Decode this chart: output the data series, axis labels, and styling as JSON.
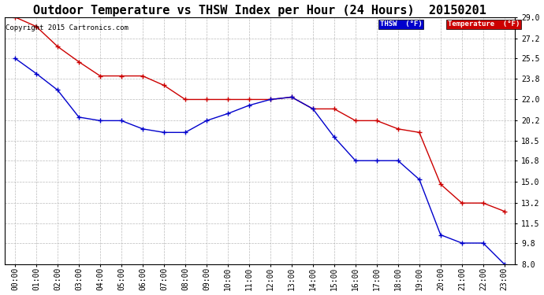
{
  "title": "Outdoor Temperature vs THSW Index per Hour (24 Hours)  20150201",
  "copyright": "Copyright 2015 Cartronics.com",
  "x_labels": [
    "00:00",
    "01:00",
    "02:00",
    "03:00",
    "04:00",
    "05:00",
    "06:00",
    "07:00",
    "08:00",
    "09:00",
    "10:00",
    "11:00",
    "12:00",
    "13:00",
    "14:00",
    "15:00",
    "16:00",
    "17:00",
    "18:00",
    "19:00",
    "20:00",
    "21:00",
    "22:00",
    "23:00"
  ],
  "thsw": [
    25.5,
    24.2,
    22.8,
    20.5,
    20.2,
    20.2,
    19.5,
    19.2,
    19.2,
    20.2,
    20.8,
    21.5,
    22.0,
    22.2,
    21.2,
    18.8,
    16.8,
    16.8,
    16.8,
    15.2,
    10.5,
    9.8,
    9.8,
    8.0
  ],
  "temperature": [
    29.0,
    28.2,
    26.5,
    25.2,
    24.0,
    24.0,
    24.0,
    23.2,
    22.0,
    22.0,
    22.0,
    22.0,
    22.0,
    22.2,
    21.2,
    21.2,
    20.2,
    20.2,
    19.5,
    19.2,
    14.8,
    13.2,
    13.2,
    12.5
  ],
  "thsw_color": "#0000cc",
  "temp_color": "#cc0000",
  "bg_color": "#ffffff",
  "grid_color": "#aaaaaa",
  "ylim_min": 8.0,
  "ylim_max": 29.0,
  "ytick_labels": [
    "8.0",
    "9.8",
    "11.5",
    "13.2",
    "15.0",
    "16.8",
    "18.5",
    "20.2",
    "22.0",
    "23.8",
    "25.5",
    "27.2",
    "29.0"
  ],
  "ytick_vals": [
    8.0,
    9.8,
    11.5,
    13.2,
    15.0,
    16.8,
    18.5,
    20.2,
    22.0,
    23.8,
    25.5,
    27.2,
    29.0
  ],
  "legend_thsw_label": "THSW  (°F)",
  "legend_temp_label": "Temperature  (°F)",
  "title_fontsize": 11,
  "axis_fontsize": 7,
  "copyright_fontsize": 6.5
}
